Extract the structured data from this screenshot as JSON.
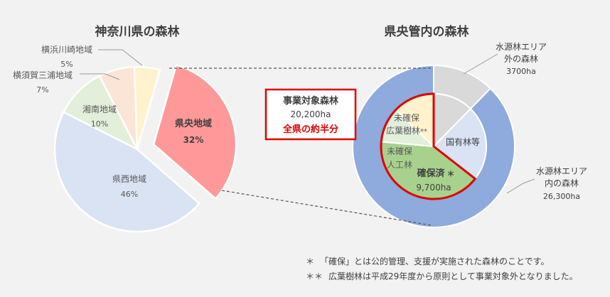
{
  "chart_data": [
    {
      "type": "pie",
      "title": "神奈川県の森林",
      "slices": [
        {
          "name": "県央地域",
          "value": 32,
          "label": "32%",
          "color": "#ff9999",
          "exploded": true
        },
        {
          "name": "県西地域",
          "value": 46,
          "label": "46%",
          "color": "#dae3f3"
        },
        {
          "name": "湘南地域",
          "value": 10,
          "label": "10%",
          "color": "#e2efda"
        },
        {
          "name": "横須賀三浦地域",
          "value": 7,
          "label": "7%",
          "color": "#fbe5d6"
        },
        {
          "name": "横浜川崎地域",
          "value": 5,
          "label": "5%",
          "color": "#fff2cc"
        }
      ]
    },
    {
      "type": "pie",
      "subtype": "nested-donut",
      "title": "県央管内の森林",
      "outer": [
        {
          "name": "水源林エリア外の森林",
          "value_text": "3700ha",
          "value": 3700,
          "color": "#d9d9d9"
        },
        {
          "name": "水源林エリア内の森林",
          "value_text": "26,300ha",
          "value": 26300,
          "color": "#8faadc"
        }
      ],
      "inner": [
        {
          "name": "国有林等",
          "color": "#dae3f3"
        },
        {
          "name": "確保済",
          "marker": "＊",
          "value_text": "9,700ha",
          "color": "#a9d18e"
        },
        {
          "name": "未確保人工林",
          "color": "#e2efda"
        },
        {
          "name": "未確保広葉樹林",
          "marker": "**",
          "color": "#fff2cc"
        }
      ],
      "callout": {
        "title": "事業対象森林",
        "value_text": "20,200ha",
        "note": "全県の約半分"
      }
    }
  ],
  "labels": {
    "left": {
      "kenou_name": "県央地域",
      "kensei_name": "県西地域",
      "shonan_name": "湘南地域",
      "yokosuka_name": "横須賀三浦地域",
      "yokohama_name": "横浜川崎地域"
    },
    "right": {
      "outer_out_line1": "水源林エリア",
      "outer_out_line2": "外の森林",
      "outer_in_line1": "水源林エリア",
      "outer_in_line2": "内の森林",
      "kokuyu": "国有林等",
      "kakuho": "確保済",
      "kakuho_marker": "＊",
      "mikaku_jinko_line1": "未確保",
      "mikaku_jinko_line2": "人工林",
      "mikaku_koyo_line1": "未確保",
      "mikaku_koyo_line2": "広葉樹林",
      "mikaku_koyo_marker": "**"
    }
  },
  "footnotes": [
    {
      "marker": "＊",
      "text": "「確保」とは公的管理、支援が実施された森林のことです。"
    },
    {
      "marker": "＊＊",
      "text": "広葉樹林は平成29年度から原則として事業対象外となりました。"
    }
  ]
}
